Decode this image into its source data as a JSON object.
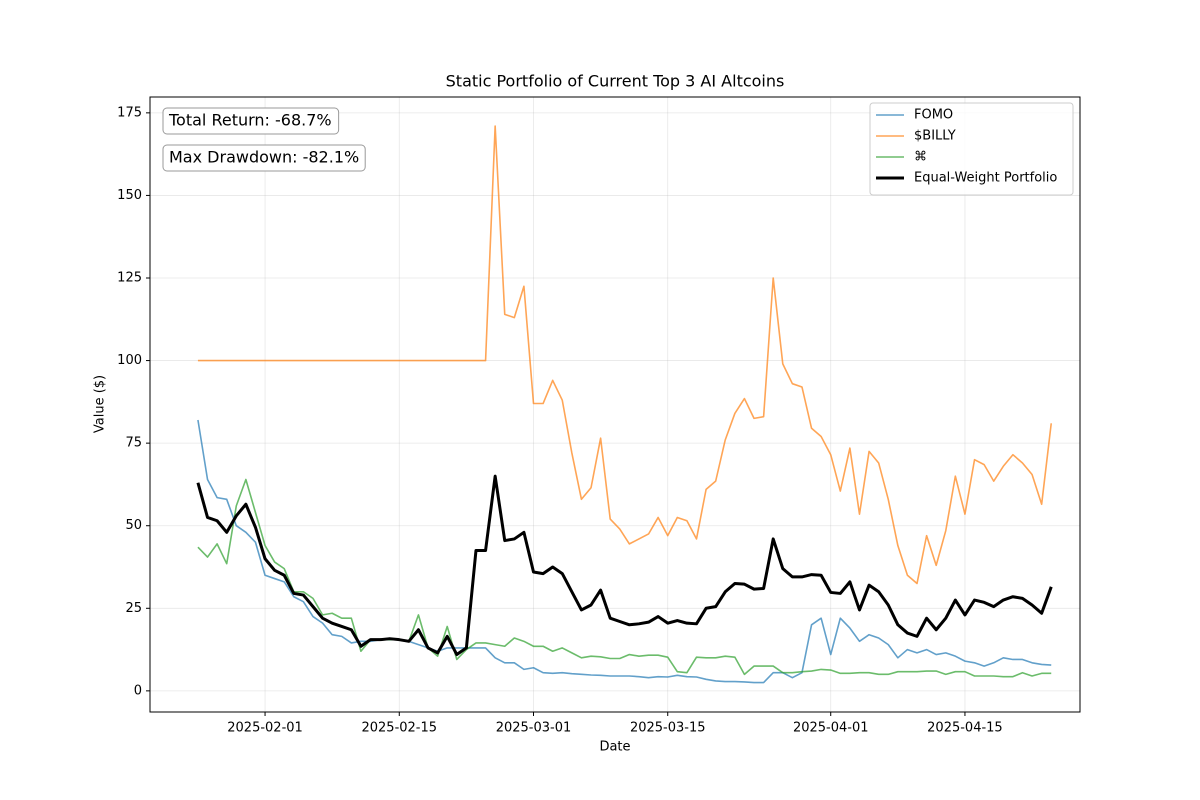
{
  "chart_data": {
    "type": "line",
    "title": "Static Portfolio of Current Top 3 AI Altcoins",
    "xlabel": "Date",
    "ylabel": "Value ($)",
    "annotations": [
      "Total Return: -68.7%",
      "Max Drawdown: -82.1%"
    ],
    "grid": true,
    "legend": "upper right",
    "xlim": [
      "2025-01-20",
      "2025-04-27"
    ],
    "xticks": [
      "2025-02-01",
      "2025-02-15",
      "2025-03-01",
      "2025-03-15",
      "2025-04-01",
      "2025-04-15"
    ],
    "ylim": [
      -6.4,
      179.8
    ],
    "yticks": [
      0,
      25,
      50,
      75,
      100,
      125,
      150,
      175
    ],
    "x": [
      "2025-01-25",
      "2025-01-26",
      "2025-01-27",
      "2025-01-28",
      "2025-01-29",
      "2025-01-30",
      "2025-01-31",
      "2025-02-01",
      "2025-02-02",
      "2025-02-03",
      "2025-02-04",
      "2025-02-05",
      "2025-02-06",
      "2025-02-07",
      "2025-02-08",
      "2025-02-09",
      "2025-02-10",
      "2025-02-11",
      "2025-02-12",
      "2025-02-13",
      "2025-02-14",
      "2025-02-15",
      "2025-02-16",
      "2025-02-17",
      "2025-02-18",
      "2025-02-19",
      "2025-02-20",
      "2025-02-21",
      "2025-02-22",
      "2025-02-23",
      "2025-02-24",
      "2025-02-25",
      "2025-02-26",
      "2025-02-27",
      "2025-02-28",
      "2025-03-01",
      "2025-03-02",
      "2025-03-03",
      "2025-03-04",
      "2025-03-05",
      "2025-03-06",
      "2025-03-07",
      "2025-03-08",
      "2025-03-09",
      "2025-03-10",
      "2025-03-11",
      "2025-03-12",
      "2025-03-13",
      "2025-03-14",
      "2025-03-15",
      "2025-03-16",
      "2025-03-17",
      "2025-03-18",
      "2025-03-19",
      "2025-03-20",
      "2025-03-21",
      "2025-03-22",
      "2025-03-23",
      "2025-03-24",
      "2025-03-25",
      "2025-03-26",
      "2025-03-27",
      "2025-03-28",
      "2025-03-29",
      "2025-03-30",
      "2025-03-31",
      "2025-04-01",
      "2025-04-02",
      "2025-04-03",
      "2025-04-04",
      "2025-04-05",
      "2025-04-06",
      "2025-04-07",
      "2025-04-08",
      "2025-04-09",
      "2025-04-10",
      "2025-04-11",
      "2025-04-12",
      "2025-04-13",
      "2025-04-14",
      "2025-04-15",
      "2025-04-16",
      "2025-04-17",
      "2025-04-18",
      "2025-04-19",
      "2025-04-20",
      "2025-04-21",
      "2025-04-22",
      "2025-04-23",
      "2025-04-24"
    ],
    "series": [
      {
        "name": "FOMO",
        "color": "#1f77b4",
        "alpha": 0.7,
        "linewidth": 1.6,
        "values": [
          82,
          64,
          58.5,
          58,
          50,
          48,
          45,
          35,
          34,
          33,
          28.5,
          27,
          22.5,
          20.5,
          17,
          16.5,
          14.5,
          15,
          15,
          15.5,
          15.5,
          15.5,
          15,
          14,
          13,
          12,
          13,
          13,
          13,
          13,
          13,
          10,
          8.5,
          8.5,
          6.5,
          7,
          5.5,
          5.3,
          5.5,
          5.2,
          5,
          4.8,
          4.7,
          4.5,
          4.5,
          4.5,
          4.3,
          4,
          4.3,
          4.2,
          4.7,
          4.3,
          4.2,
          3.5,
          3,
          2.8,
          2.8,
          2.7,
          2.5,
          2.5,
          5.5,
          5.5,
          4,
          5.5,
          20,
          22,
          11,
          22,
          19,
          15,
          17,
          16,
          14,
          10,
          12.5,
          11.5,
          12.5,
          11,
          11.5,
          10.5,
          9,
          8.5,
          7.5,
          8.5,
          10,
          9.5,
          9.5,
          8.5,
          8,
          7.8
        ]
      },
      {
        "name": "$BILLY",
        "color": "#ff7f0e",
        "alpha": 0.7,
        "linewidth": 1.6,
        "values": [
          100,
          100,
          100,
          100,
          100,
          100,
          100,
          100,
          100,
          100,
          100,
          100,
          100,
          100,
          100,
          100,
          100,
          100,
          100,
          100,
          100,
          100,
          100,
          100,
          100,
          100,
          100,
          100,
          100,
          100,
          100,
          171,
          114,
          113,
          122.5,
          87,
          87,
          94,
          88,
          72,
          58,
          61.5,
          76.5,
          52,
          49,
          44.5,
          46,
          47.5,
          52.5,
          47,
          52.5,
          51.5,
          46,
          61,
          63.5,
          76,
          84,
          88.5,
          82.5,
          83,
          125,
          99,
          93,
          92,
          79.5,
          77,
          71.5,
          60.5,
          73.5,
          53.5,
          72.5,
          69,
          58,
          44,
          35,
          32.5,
          47,
          38,
          48.5,
          65,
          53.5,
          70,
          68.5,
          63.5,
          68,
          71.5,
          69,
          65.5,
          56.5,
          81
        ]
      },
      {
        "name": "⌘",
        "color": "#2ca02c",
        "alpha": 0.7,
        "linewidth": 1.6,
        "values": [
          43.5,
          40.5,
          44.5,
          38.5,
          56,
          64,
          54,
          44,
          39,
          37,
          30,
          30,
          28,
          23,
          23.5,
          22,
          22,
          12,
          15.5,
          15.5,
          15.5,
          15.5,
          15,
          23,
          13,
          10.5,
          19.5,
          9.5,
          12.5,
          14.5,
          14.5,
          14,
          13.5,
          16,
          15,
          13.5,
          13.5,
          12,
          13,
          11.5,
          10,
          10.5,
          10.3,
          9.8,
          9.8,
          11,
          10.5,
          10.8,
          10.8,
          10.2,
          5.8,
          5.5,
          10.2,
          10,
          10,
          10.5,
          10.2,
          5,
          7.5,
          7.5,
          7.5,
          5.5,
          5.5,
          5.8,
          6,
          6.5,
          6.3,
          5.3,
          5.3,
          5.5,
          5.5,
          5,
          5,
          5.8,
          5.8,
          5.8,
          6,
          6,
          5,
          5.8,
          5.8,
          4.5,
          4.5,
          4.5,
          4.3,
          4.3,
          5.5,
          4.5,
          5.3,
          5.3
        ]
      },
      {
        "name": "Equal-Weight Portfolio",
        "color": "#000000",
        "alpha": 1,
        "linewidth": 3,
        "values": [
          63,
          52.5,
          51.5,
          48,
          53,
          56.5,
          49.5,
          40,
          36.5,
          35,
          29.5,
          29,
          25.5,
          22,
          20.5,
          19.5,
          18.5,
          13.5,
          15.5,
          15.5,
          15.8,
          15.5,
          15,
          18.5,
          13,
          11.5,
          16.5,
          11,
          13,
          42.5,
          42.5,
          65,
          45.5,
          46,
          48,
          36,
          35.5,
          37.5,
          35.5,
          30,
          24.5,
          26,
          30.5,
          22,
          21,
          20,
          20.3,
          20.8,
          22.5,
          20.5,
          21.3,
          20.5,
          20.3,
          25,
          25.5,
          30,
          32.5,
          32.3,
          30.8,
          31,
          46,
          37,
          34.5,
          34.5,
          35.2,
          35,
          29.8,
          29.5,
          33,
          24.5,
          32,
          30,
          26,
          20,
          17.5,
          16.5,
          22,
          18.5,
          22,
          27.5,
          23,
          27.5,
          26.8,
          25.5,
          27.5,
          28.5,
          28,
          26,
          23.5,
          31.5
        ]
      }
    ]
  }
}
